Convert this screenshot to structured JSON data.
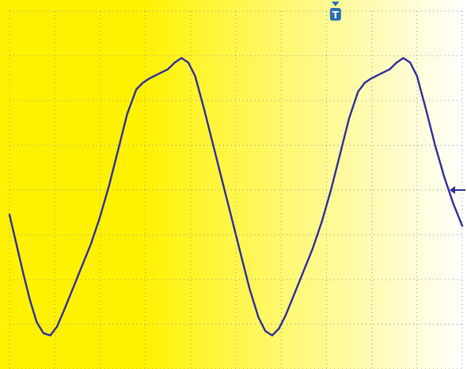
{
  "chart_data": {
    "type": "line",
    "title": "",
    "xlabel": "",
    "ylabel": "",
    "grid": true,
    "grid_divisions": {
      "x": 10,
      "y": 8
    },
    "xlim": [
      0,
      10
    ],
    "ylim": [
      -4,
      4
    ],
    "trigger_marker": {
      "label": "T",
      "x_div": 7.2
    },
    "ground_marker": {
      "y_div": -0.0
    },
    "colors": {
      "trace": "#2d2d9e",
      "background_left": "#fff200",
      "background_right": "#ffffff",
      "grid_dots": "#9a9a9a",
      "marker": "#2a6fb5"
    },
    "series": [
      {
        "values": [
          [
            0.0,
            -0.55
          ],
          [
            0.15,
            -1.2
          ],
          [
            0.3,
            -1.85
          ],
          [
            0.45,
            -2.45
          ],
          [
            0.6,
            -2.95
          ],
          [
            0.75,
            -3.2
          ],
          [
            0.9,
            -3.25
          ],
          [
            1.05,
            -3.05
          ],
          [
            1.2,
            -2.7
          ],
          [
            1.4,
            -2.2
          ],
          [
            1.6,
            -1.7
          ],
          [
            1.8,
            -1.2
          ],
          [
            2.0,
            -0.6
          ],
          [
            2.2,
            0.1
          ],
          [
            2.4,
            0.9
          ],
          [
            2.6,
            1.7
          ],
          [
            2.8,
            2.25
          ],
          [
            2.95,
            2.4
          ],
          [
            3.1,
            2.5
          ],
          [
            3.3,
            2.6
          ],
          [
            3.5,
            2.7
          ],
          [
            3.65,
            2.85
          ],
          [
            3.8,
            2.95
          ],
          [
            3.95,
            2.85
          ],
          [
            4.1,
            2.55
          ],
          [
            4.3,
            1.8
          ],
          [
            4.5,
            1.0
          ],
          [
            4.7,
            0.2
          ],
          [
            4.9,
            -0.6
          ],
          [
            5.1,
            -1.4
          ],
          [
            5.3,
            -2.2
          ],
          [
            5.5,
            -2.85
          ],
          [
            5.65,
            -3.15
          ],
          [
            5.8,
            -3.25
          ],
          [
            5.95,
            -3.1
          ],
          [
            6.1,
            -2.8
          ],
          [
            6.3,
            -2.3
          ],
          [
            6.5,
            -1.8
          ],
          [
            6.7,
            -1.3
          ],
          [
            6.9,
            -0.7
          ],
          [
            7.1,
            0.0
          ],
          [
            7.3,
            0.8
          ],
          [
            7.5,
            1.6
          ],
          [
            7.7,
            2.2
          ],
          [
            7.85,
            2.4
          ],
          [
            8.0,
            2.5
          ],
          [
            8.2,
            2.6
          ],
          [
            8.4,
            2.7
          ],
          [
            8.55,
            2.85
          ],
          [
            8.7,
            2.95
          ],
          [
            8.85,
            2.85
          ],
          [
            9.0,
            2.55
          ],
          [
            9.2,
            1.8
          ],
          [
            9.4,
            1.0
          ],
          [
            9.6,
            0.3
          ],
          [
            9.8,
            -0.3
          ],
          [
            10.0,
            -0.8
          ]
        ]
      }
    ]
  }
}
